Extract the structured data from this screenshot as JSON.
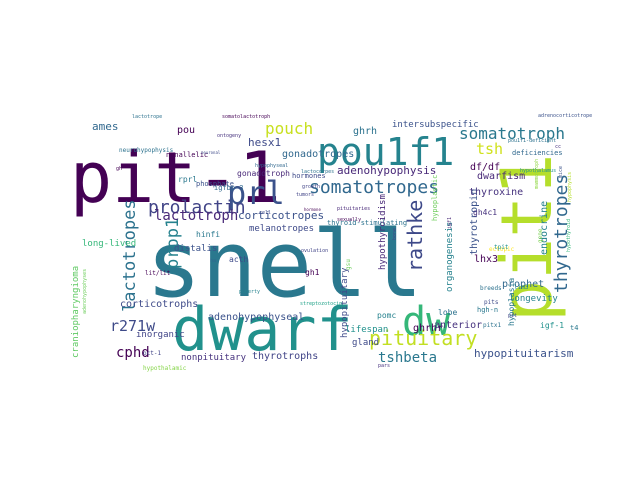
{
  "words": [
    {
      "text": "snell",
      "color": "#2a788e"
    },
    {
      "text": "pit-1",
      "color": "#440154"
    },
    {
      "text": "pit1",
      "color": "#b5de2b"
    },
    {
      "text": "dwarf",
      "color": "#21918c"
    },
    {
      "text": "pou1f1",
      "color": "#25838e"
    },
    {
      "text": "prl",
      "color": "#3b528b"
    },
    {
      "text": "dw",
      "color": "#35b779"
    },
    {
      "text": "somatotropes",
      "color": "#31688e"
    },
    {
      "text": "prolactin",
      "color": "#414487"
    },
    {
      "text": "pituitary",
      "color": "#c2df23"
    },
    {
      "text": "lactotropes",
      "color": "#2c728e"
    },
    {
      "text": "thyrotropes",
      "color": "#31688e"
    },
    {
      "text": "rathke",
      "color": "#3e4989"
    },
    {
      "text": "prop1",
      "color": "#26828e"
    },
    {
      "text": "somatotroph",
      "color": "#2a788e"
    },
    {
      "text": "pouch",
      "color": "#c8e020"
    },
    {
      "text": "lactotroph",
      "color": "#482878"
    },
    {
      "text": "tshbeta",
      "color": "#2a788e"
    },
    {
      "text": "r271w",
      "color": "#3e4a89"
    },
    {
      "text": "cphd",
      "color": "#440154"
    },
    {
      "text": "tsh",
      "color": "#d0e11c"
    },
    {
      "text": "adenohypophysis",
      "color": "#482878"
    },
    {
      "text": "hypopituitarism",
      "color": "#3b528b"
    },
    {
      "text": "corticotropes",
      "color": "#3b528b"
    },
    {
      "text": "gonadotropes",
      "color": "#31688e"
    },
    {
      "text": "corticotrophs",
      "color": "#3e4a89"
    },
    {
      "text": "adenohypophyseal",
      "color": "#3b528b"
    },
    {
      "text": "thyrotrophs",
      "color": "#414487"
    },
    {
      "text": "nonpituitary",
      "color": "#46327e"
    },
    {
      "text": "pou",
      "color": "#440154"
    },
    {
      "text": "hesx1",
      "color": "#3e4a89"
    },
    {
      "text": "ames",
      "color": "#31688e"
    },
    {
      "text": "ghrh",
      "color": "#2c728e"
    },
    {
      "text": "dwarfism",
      "color": "#482878"
    },
    {
      "text": "df/df",
      "color": "#440154"
    },
    {
      "text": "thyroxine",
      "color": "#46327e"
    },
    {
      "text": "endocrine",
      "color": "#26828e"
    },
    {
      "text": "thyrotropin",
      "color": "#3b528b"
    },
    {
      "text": "hypothyroidism",
      "color": "#482878"
    },
    {
      "text": "hypopituitary",
      "color": "#3e4a89"
    },
    {
      "text": "ghrhr",
      "color": "#440154"
    },
    {
      "text": "anterior",
      "color": "#46327e"
    },
    {
      "text": "prophet",
      "color": "#31688e"
    },
    {
      "text": "lhx3",
      "color": "#440154"
    },
    {
      "text": "organogenesis",
      "color": "#26828e"
    },
    {
      "text": "melanotropes",
      "color": "#3e4a89"
    },
    {
      "text": "gonadotroph",
      "color": "#482878"
    },
    {
      "text": "rprl",
      "color": "#2a788e"
    },
    {
      "text": "distalis",
      "color": "#3b528b"
    },
    {
      "text": "acth",
      "color": "#3e4a89"
    },
    {
      "text": "gh1",
      "color": "#440154"
    },
    {
      "text": "gland",
      "color": "#3e4a89"
    },
    {
      "text": "lifespan",
      "color": "#21918c"
    },
    {
      "text": "pomc",
      "color": "#26828e"
    },
    {
      "text": "lobe",
      "color": "#2c728e"
    },
    {
      "text": "longevity",
      "color": "#25838e"
    },
    {
      "text": "igf-1",
      "color": "#21918c"
    },
    {
      "text": "hypoplasia",
      "color": "#2a788e"
    },
    {
      "text": "gh4c1",
      "color": "#46327e"
    },
    {
      "text": "inorganic",
      "color": "#414487"
    },
    {
      "text": "intersubspecific",
      "color": "#3b528b"
    },
    {
      "text": "hormones",
      "color": "#3e4a89"
    },
    {
      "text": "long-lived",
      "color": "#35b779"
    },
    {
      "text": "craniopharyngioma",
      "color": "#5ec962"
    },
    {
      "text": "hypothalamic",
      "color": "#86d549"
    },
    {
      "text": "thyroid-stimulating",
      "color": "#2c728e"
    },
    {
      "text": "hinfi",
      "color": "#2a788e"
    },
    {
      "text": "phosphate",
      "color": "#3b528b"
    },
    {
      "text": "igfbp-3",
      "color": "#31688e"
    },
    {
      "text": "neurohypophysis",
      "color": "#2c728e"
    },
    {
      "text": "nonallelic",
      "color": "#440154"
    },
    {
      "text": "deficiencies",
      "color": "#31688e"
    },
    {
      "text": "lit/lit",
      "color": "#440154"
    },
    {
      "text": "hgh-n",
      "color": "#2a788e"
    },
    {
      "text": "breeds",
      "color": "#2c728e"
    },
    {
      "text": "pitx1",
      "color": "#2c728e"
    },
    {
      "text": "hypoplastic",
      "color": "#6ccd5a"
    },
    {
      "text": "pits",
      "color": "#3e4a89"
    },
    {
      "text": "lim3",
      "color": "#26828e"
    },
    {
      "text": "gene",
      "color": "#7ad151"
    },
    {
      "text": "oct-1",
      "color": "#414487"
    },
    {
      "text": "pit",
      "color": "#414487"
    },
    {
      "text": "ectopic",
      "color": "#fde725"
    },
    {
      "text": "lactotrope",
      "color": "#2c728e"
    },
    {
      "text": "hypothalamus",
      "color": "#21918c"
    },
    {
      "text": "adenohypophyses",
      "color": "#6ccd5a"
    },
    {
      "text": "tpit",
      "color": "#21918c"
    },
    {
      "text": "hypophysis",
      "color": "#b5de2b"
    },
    {
      "text": "mammotroph",
      "color": "#90d743"
    },
    {
      "text": "pou1f1-deficient",
      "color": "#2c728e"
    },
    {
      "text": "somatolactotroph",
      "color": "#440154"
    },
    {
      "text": "adrenocorticotrope",
      "color": "#3b528b"
    },
    {
      "text": "ontogeny",
      "color": "#46327e"
    },
    {
      "text": "neuronal",
      "color": "#3e4a89"
    },
    {
      "text": "lactocorpes",
      "color": "#2c728e"
    },
    {
      "text": "hypophyseal",
      "color": "#31688e"
    },
    {
      "text": "tumors",
      "color": "#414487"
    },
    {
      "text": "sexually",
      "color": "#440154"
    },
    {
      "text": "pituitaries",
      "color": "#482878"
    },
    {
      "text": "ovulation",
      "color": "#414487"
    },
    {
      "text": "puberty",
      "color": "#26828e"
    },
    {
      "text": "streptozotocin",
      "color": "#1fa187"
    },
    {
      "text": "hypothyroid",
      "color": "#35b779"
    },
    {
      "text": "pars",
      "color": "#46327e"
    },
    {
      "text": "growth",
      "color": "#414487"
    },
    {
      "text": "hormone",
      "color": "#440154"
    },
    {
      "text": "cell",
      "color": "#3e4a89"
    },
    {
      "text": "gsu",
      "color": "#6ccd5a"
    },
    {
      "text": "t4",
      "color": "#2a788e"
    },
    {
      "text": "bone",
      "color": "#414487"
    },
    {
      "text": "ha",
      "color": "#31688e"
    },
    {
      "text": "gh",
      "color": "#440154"
    },
    {
      "text": "cc",
      "color": "#46327e"
    },
    {
      "text": "mice",
      "color": "#3b528b"
    },
    {
      "text": "igf1",
      "color": "#482878"
    }
  ]
}
